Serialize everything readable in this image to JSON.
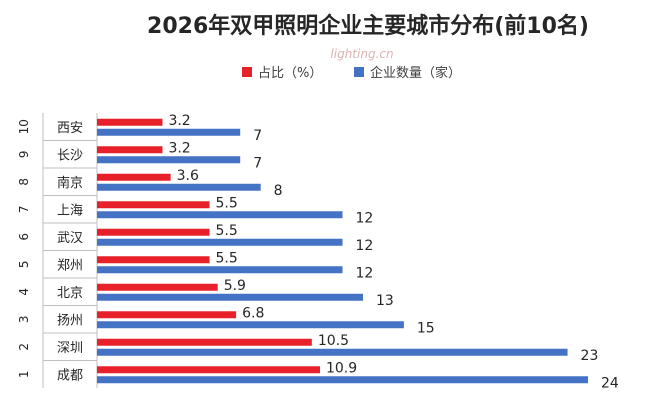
{
  "chart_data": {
    "type": "bar",
    "orientation": "horizontal",
    "title": "2026年双甲照明企业主要城市分布(前10名)",
    "watermark": "lighting.cn",
    "ranks": [
      "1",
      "2",
      "3",
      "4",
      "5",
      "6",
      "7",
      "8",
      "9",
      "10"
    ],
    "categories": [
      "成都",
      "深圳",
      "扬州",
      "北京",
      "郑州",
      "武汉",
      "上海",
      "南京",
      "长沙",
      "西安"
    ],
    "series": [
      {
        "name": "占比（%）",
        "color": "#e8202a",
        "values": [
          10.9,
          10.5,
          6.8,
          5.9,
          5.5,
          5.5,
          5.5,
          3.6,
          3.2,
          3.2
        ],
        "labels": [
          "10.9",
          "10.5",
          "6.8",
          "5.9",
          "5.5",
          "5.5",
          "5.5",
          "3.6",
          "3.2",
          "3.2"
        ]
      },
      {
        "name": "企业数量（家）",
        "color": "#4472c4",
        "values": [
          24,
          23,
          15,
          13,
          12,
          12,
          12,
          8,
          7,
          7
        ],
        "labels": [
          "24",
          "23",
          "15",
          "13",
          "12",
          "12",
          "12",
          "8",
          "7",
          "7"
        ]
      }
    ],
    "xlim": [
      0,
      24
    ],
    "legend": "top",
    "grid": false
  }
}
